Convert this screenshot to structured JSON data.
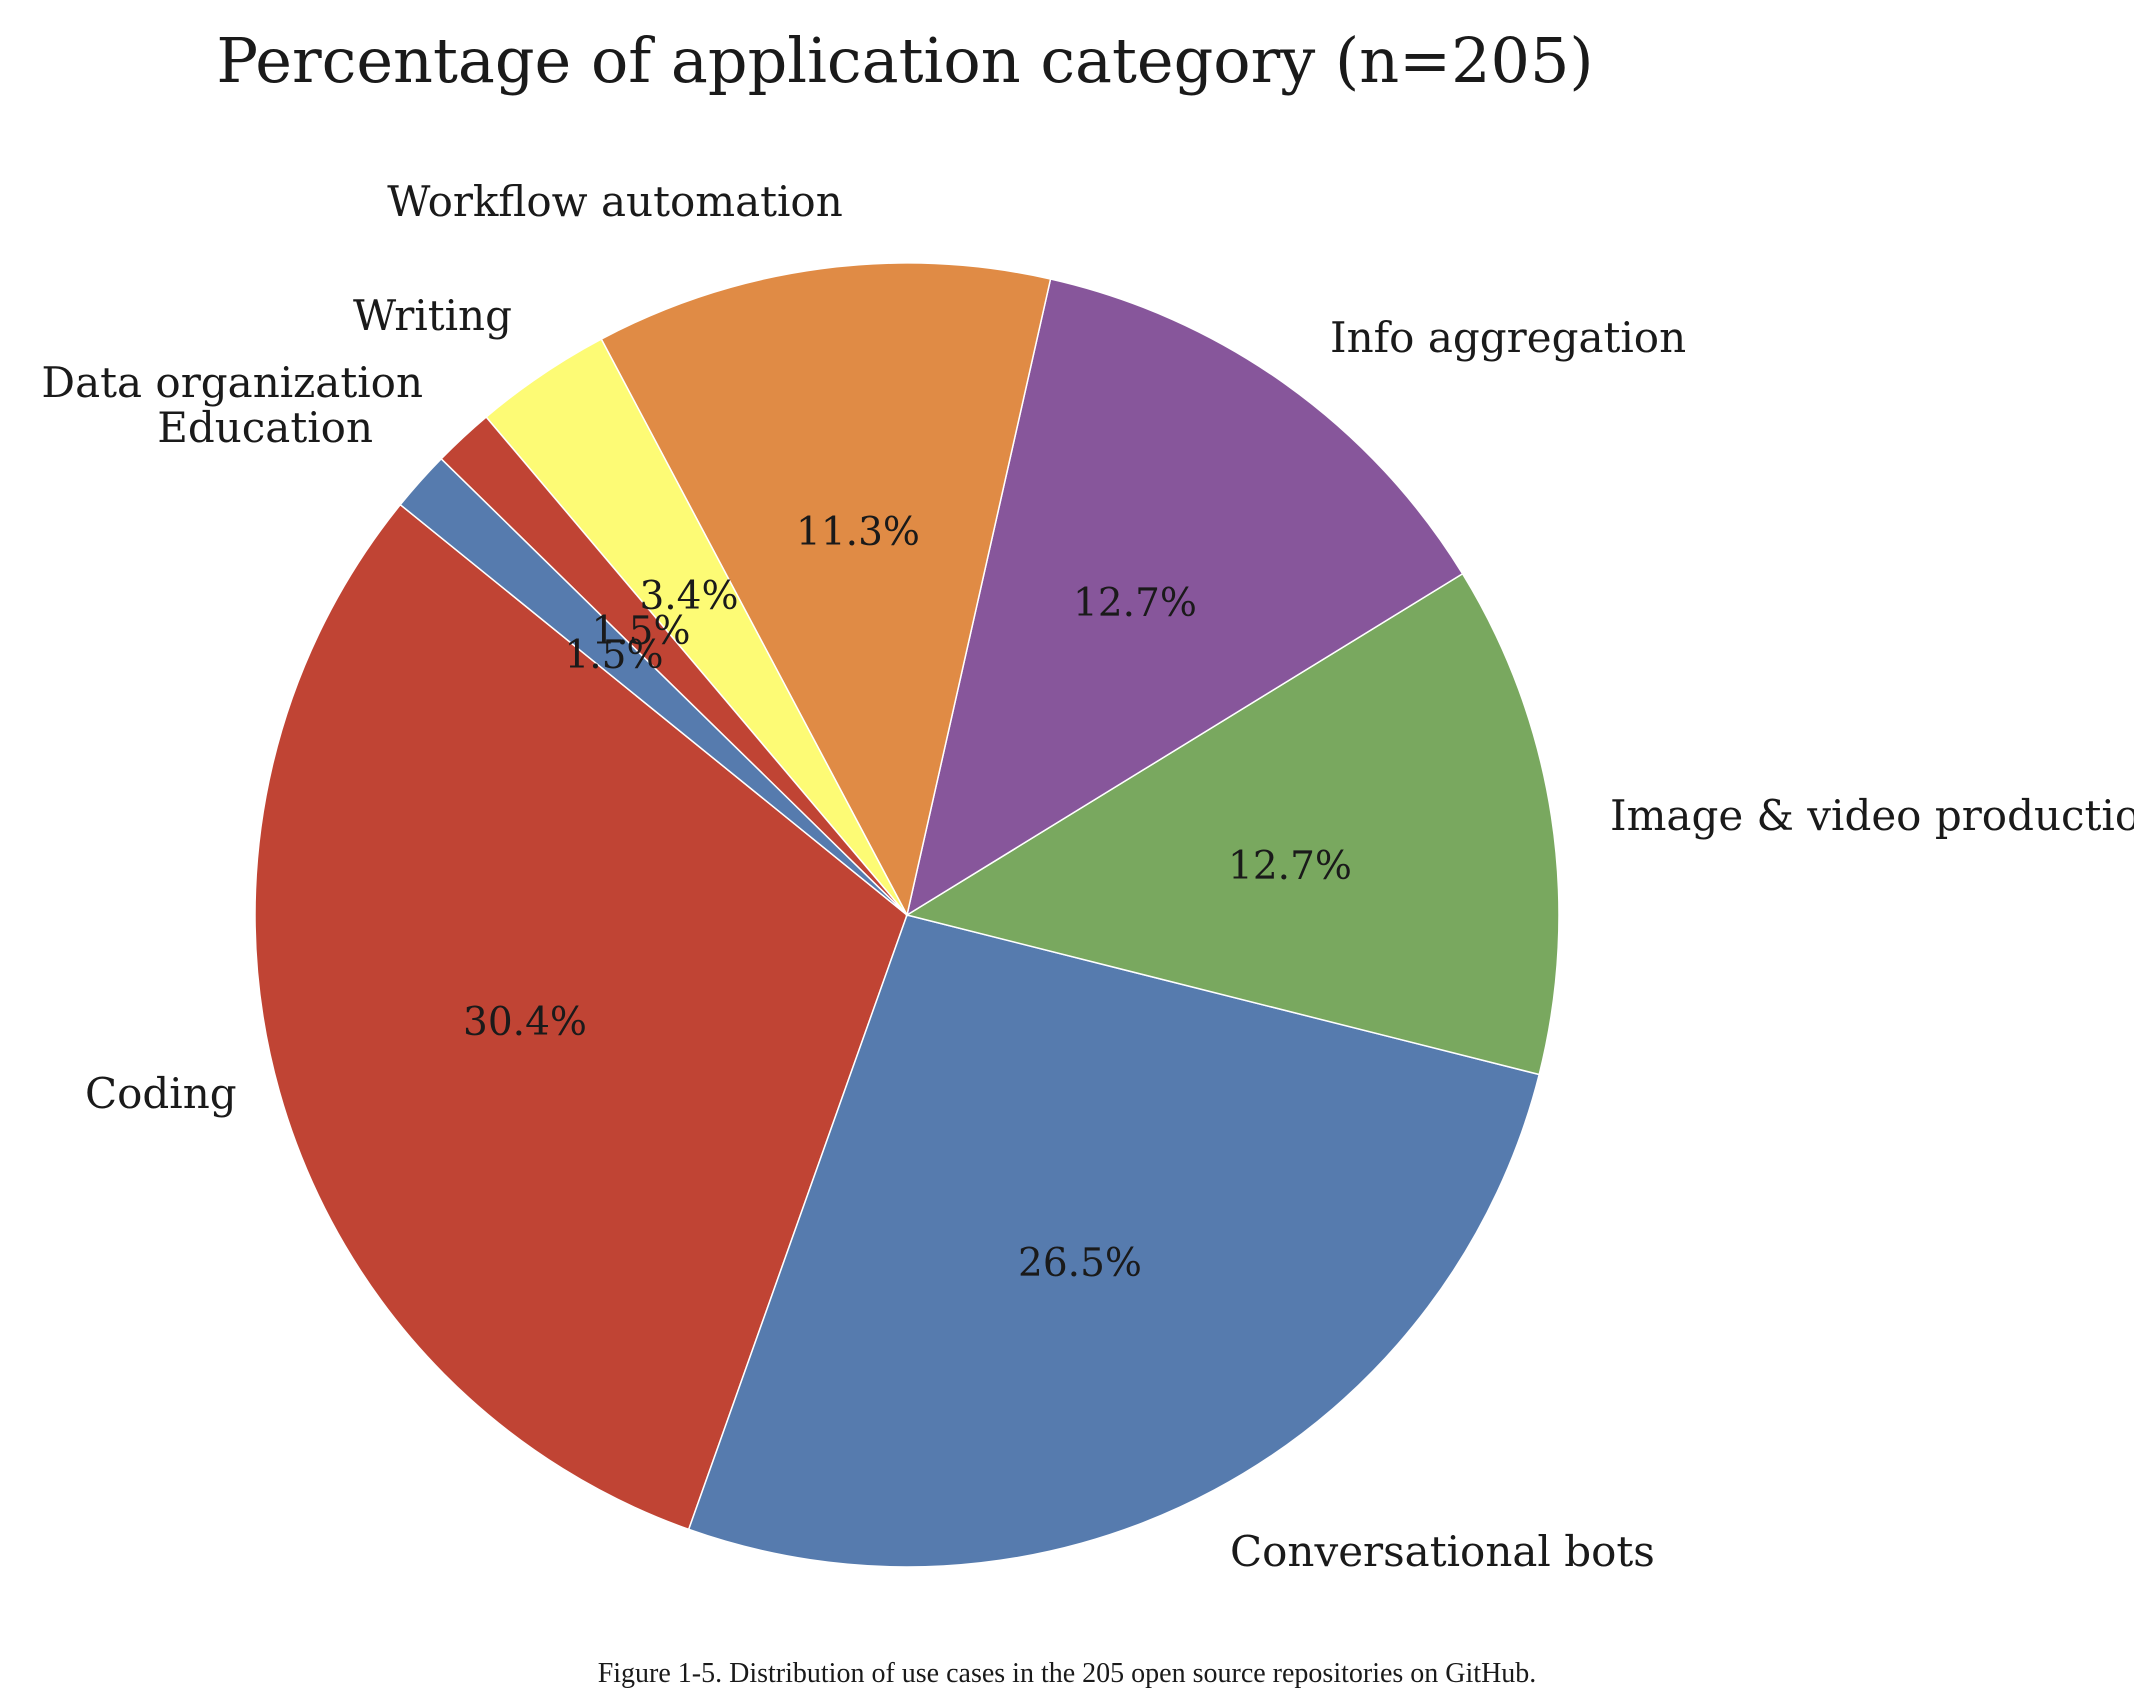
{
  "chart_data": {
    "type": "pie",
    "title": "Percentage of application category (n=205)",
    "slices": [
      {
        "label": "Coding",
        "value": 30.4,
        "pct_label": "30.4%",
        "color": "#c04434"
      },
      {
        "label": "Conversational bots",
        "value": 26.5,
        "pct_label": "26.5%",
        "color": "#567bae"
      },
      {
        "label": "Image & video production",
        "value": 12.7,
        "pct_label": "12.7%",
        "color": "#79a85f"
      },
      {
        "label": "Info aggregation",
        "value": 12.7,
        "pct_label": "12.7%",
        "color": "#87569b"
      },
      {
        "label": "Workflow automation",
        "value": 11.3,
        "pct_label": "11.3%",
        "color": "#e08b45"
      },
      {
        "label": "Writing",
        "value": 3.4,
        "pct_label": "3.4%",
        "color": "#fdfb75"
      },
      {
        "label": "Data organization",
        "value": 1.5,
        "pct_label": "1.5%",
        "color": "#c04434"
      },
      {
        "label": "Education",
        "value": 1.5,
        "pct_label": "1.5%",
        "color": "#567bae"
      }
    ],
    "start_angle_deg": 141,
    "direction": "counterclockwise",
    "legend": "none"
  },
  "caption": "Figure 1-5. Distribution of use cases in the 205 open source repositories on GitHub."
}
